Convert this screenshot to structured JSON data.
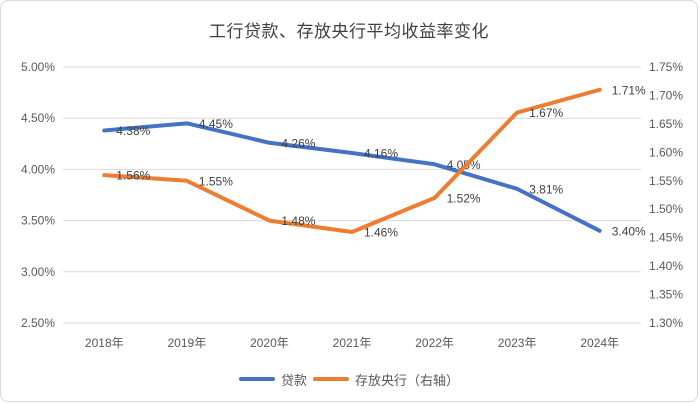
{
  "chart": {
    "title": "工行贷款、存放央行平均收益率变化"
  },
  "chart_data": {
    "type": "line",
    "title": "工行贷款、存放央行平均收益率变化",
    "categories": [
      "2018年",
      "2019年",
      "2020年",
      "2021年",
      "2022年",
      "2023年",
      "2024年"
    ],
    "series": [
      {
        "key": "loans",
        "name": "贷款",
        "axis": "left",
        "color": "#4472C4",
        "values": [
          4.38,
          4.45,
          4.26,
          4.16,
          4.05,
          3.81,
          3.4
        ],
        "point_labels": [
          "4.38%",
          "4.45%",
          "4.26%",
          "4.16%",
          "4.05%",
          "3.81%",
          "3.40%"
        ]
      },
      {
        "key": "central-bank-deposits",
        "name": "存放央行（右轴）",
        "axis": "right",
        "color": "#ED7D31",
        "values": [
          1.56,
          1.55,
          1.48,
          1.46,
          1.52,
          1.67,
          1.71
        ],
        "point_labels": [
          "1.56%",
          "1.55%",
          "1.48%",
          "1.46%",
          "1.52%",
          "1.67%",
          "1.71%"
        ]
      }
    ],
    "left_axis": {
      "min": 2.5,
      "max": 5.0,
      "step": 0.5,
      "tick_labels": [
        "5.00%",
        "4.50%",
        "4.00%",
        "3.50%",
        "3.00%",
        "2.50%"
      ]
    },
    "right_axis": {
      "min": 1.3,
      "max": 1.75,
      "step": 0.05,
      "tick_labels": [
        "1.75%",
        "1.70%",
        "1.65%",
        "1.60%",
        "1.55%",
        "1.50%",
        "1.45%",
        "1.40%",
        "1.35%",
        "1.30%"
      ]
    },
    "grid": "horizontal",
    "legend_position": "bottom"
  },
  "colors": {
    "series_blue": "#4472C4",
    "series_orange": "#ED7D31",
    "gridline": "#D9D9D9",
    "axis_text": "#595959",
    "data_label": "#404040",
    "title_text": "#404040",
    "frame_border": "#D9D9D9",
    "background": "#FFFFFF"
  }
}
